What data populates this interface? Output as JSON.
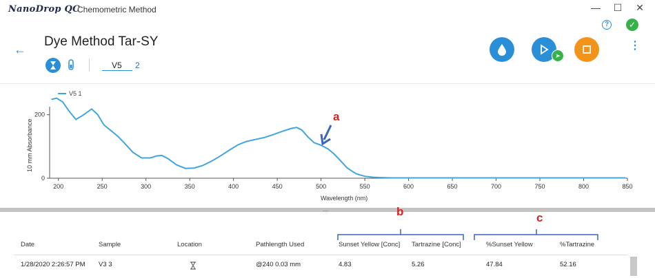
{
  "app": {
    "logo": "NanoDrop QC",
    "method": "Chemometric Method"
  },
  "page": {
    "title": "Dye Method Tar-SY"
  },
  "sample": {
    "name": "V5",
    "count": "2"
  },
  "chart_data": {
    "type": "line",
    "legend": "V5 1",
    "ylabel": "10 mm Absorbance",
    "xlabel": "Wavelength (nm)",
    "xlim": [
      190,
      850
    ],
    "ylim": [
      0,
      260
    ],
    "x_ticks": [
      "200",
      "250",
      "300",
      "350",
      "400",
      "450",
      "500",
      "550",
      "600",
      "650",
      "700",
      "750",
      "800",
      "850"
    ],
    "y_ticks": [
      "0",
      "200"
    ],
    "x": [
      192,
      198,
      205,
      212,
      220,
      228,
      238,
      245,
      252,
      260,
      268,
      275,
      285,
      295,
      305,
      312,
      318,
      325,
      335,
      345,
      355,
      365,
      375,
      385,
      395,
      405,
      415,
      425,
      435,
      445,
      455,
      465,
      472,
      478,
      485,
      492,
      500,
      508,
      515,
      522,
      530,
      540,
      550,
      560,
      570,
      580,
      600,
      650,
      700,
      750,
      800,
      848
    ],
    "y": [
      248,
      252,
      240,
      212,
      185,
      198,
      218,
      200,
      168,
      150,
      132,
      112,
      82,
      64,
      64,
      70,
      72,
      62,
      42,
      31,
      32,
      40,
      54,
      70,
      88,
      105,
      116,
      122,
      128,
      137,
      147,
      156,
      160,
      152,
      130,
      112,
      104,
      92,
      76,
      56,
      32,
      14,
      6,
      3,
      2,
      1,
      1,
      1,
      1,
      1,
      1,
      1
    ]
  },
  "annotations": {
    "a": "a",
    "b": "b",
    "c": "c"
  },
  "table": {
    "headers": [
      "Date",
      "Sample",
      "Location",
      "Pathlength Used",
      "Sunset Yellow [Conc]",
      "Tartrazine [Conc]",
      "%Sunset Yellow",
      "%Tartrazine"
    ],
    "row": [
      "1/28/2020 2:26:57 PM",
      "V3 3",
      "",
      "@240 0.03 mm",
      "4.83",
      "5.26",
      "47.84",
      "52.16"
    ]
  },
  "colors": {
    "accent": "#2a8fd6",
    "orange": "#f2941c",
    "green": "#36b24a",
    "series": "#3fa6dc",
    "annotation": "#d32424"
  }
}
